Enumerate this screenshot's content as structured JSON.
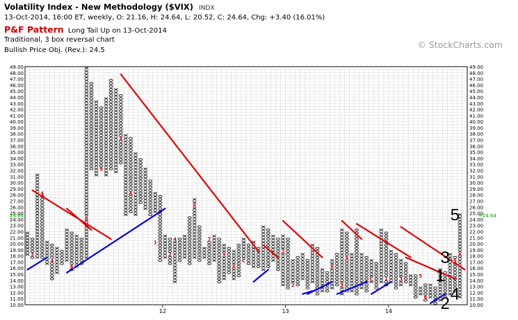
{
  "header": {
    "title": "Volatility Index - New Methodology ($VIX)",
    "exchange": "INDX",
    "ohlc": "13-Oct-2014, 16:00 ET, weekly, O: 21.16, H: 24.64, L: 20.52, C: 24.64, Chg: +3.40 (16.01%)",
    "pf_label": "P&F Pattern",
    "pattern_text": "Long Tail Up on 13-Oct-2014",
    "chart_type": "Traditional, 3 box reversal chart",
    "price_objective": "Bullish Price Obj. (Rev.): 24.5"
  },
  "watermark": "© StockCharts.com",
  "chart_data": {
    "type": "point-and-figure",
    "box_size": 0.5,
    "reversal": 3,
    "y_range": [
      10.0,
      49.0
    ],
    "y_tick_step": 0.5,
    "y_label_step": 1.0,
    "x_tick_labels": [
      {
        "label": "12",
        "column": 28
      },
      {
        "label": "13",
        "column": 53
      },
      {
        "label": "14",
        "column": 74
      }
    ],
    "last_price": "24.64",
    "last_price_label": "+24.64",
    "columns": [
      [
        "X",
        18.0,
        21.5
      ],
      [
        "O",
        17.5,
        20.5
      ],
      [
        "X",
        17.5,
        31.0
      ],
      [
        "O",
        17.5,
        28.0
      ],
      [
        "X",
        16.5,
        20.0
      ],
      [
        "O",
        14.0,
        19.5
      ],
      [
        "X",
        15.0,
        19.0
      ],
      [
        "O",
        16.5,
        18.5
      ],
      [
        "X",
        17.0,
        22.0
      ],
      [
        "O",
        15.5,
        21.5
      ],
      [
        "X",
        16.0,
        21.0
      ],
      [
        "O",
        16.5,
        20.5
      ],
      [
        "X",
        17.5,
        48.5
      ],
      [
        "O",
        32.0,
        46.0
      ],
      [
        "X",
        31.0,
        43.0
      ],
      [
        "O",
        32.0,
        42.0
      ],
      [
        "X",
        31.0,
        43.5
      ],
      [
        "O",
        32.0,
        46.5
      ],
      [
        "X",
        31.5,
        45.0
      ],
      [
        "O",
        33.0,
        44.0
      ],
      [
        "X",
        24.5,
        37.5
      ],
      [
        "O",
        25.0,
        37.0
      ],
      [
        "X",
        24.5,
        34.5
      ],
      [
        "O",
        26.5,
        33.5
      ],
      [
        "X",
        25.5,
        32.0
      ],
      [
        "O",
        24.5,
        30.0
      ],
      [
        "X",
        25.0,
        28.0
      ],
      [
        "O",
        17.0,
        27.5
      ],
      [
        "X",
        17.5,
        21.0
      ],
      [
        "O",
        16.5,
        20.5
      ],
      [
        "X",
        13.5,
        20.5
      ],
      [
        "O",
        17.0,
        20.5
      ],
      [
        "X",
        17.5,
        21.0
      ],
      [
        "O",
        16.5,
        24.0
      ],
      [
        "X",
        17.5,
        27.0
      ],
      [
        "O",
        17.0,
        22.5
      ],
      [
        "X",
        17.5,
        19.0
      ],
      [
        "O",
        16.5,
        20.5
      ],
      [
        "X",
        17.0,
        21.0
      ],
      [
        "O",
        13.5,
        20.5
      ],
      [
        "X",
        14.0,
        19.5
      ],
      [
        "O",
        15.0,
        19.0
      ],
      [
        "X",
        14.0,
        18.5
      ],
      [
        "O",
        14.5,
        19.5
      ],
      [
        "X",
        17.0,
        20.5
      ],
      [
        "O",
        16.5,
        19.5
      ],
      [
        "X",
        16.0,
        20.0
      ],
      [
        "O",
        16.0,
        19.0
      ],
      [
        "X",
        15.5,
        22.5
      ],
      [
        "O",
        16.0,
        22.0
      ],
      [
        "X",
        17.0,
        21.0
      ],
      [
        "O",
        15.5,
        20.5
      ],
      [
        "X",
        13.0,
        21.0
      ],
      [
        "O",
        12.5,
        20.5
      ],
      [
        "X",
        13.5,
        17.0
      ],
      [
        "O",
        13.0,
        17.5
      ],
      [
        "X",
        14.0,
        18.0
      ],
      [
        "O",
        12.5,
        17.0
      ],
      [
        "X",
        13.5,
        19.5
      ],
      [
        "O",
        11.5,
        19.0
      ],
      [
        "X",
        12.0,
        15.5
      ],
      [
        "O",
        12.0,
        15.0
      ],
      [
        "X",
        12.5,
        17.0
      ],
      [
        "O",
        13.0,
        18.0
      ],
      [
        "X",
        11.5,
        22.0
      ],
      [
        "O",
        12.0,
        21.5
      ],
      [
        "X",
        12.0,
        18.0
      ],
      [
        "O",
        11.5,
        22.0
      ],
      [
        "X",
        12.5,
        18.0
      ],
      [
        "O",
        12.0,
        17.5
      ],
      [
        "X",
        13.5,
        17.0
      ],
      [
        "O",
        12.5,
        16.5
      ],
      [
        "X",
        13.5,
        22.0
      ],
      [
        "O",
        13.0,
        21.5
      ],
      [
        "X",
        13.5,
        18.5
      ],
      [
        "O",
        12.5,
        18.0
      ],
      [
        "X",
        13.0,
        17.0
      ],
      [
        "O",
        13.5,
        16.5
      ],
      [
        "X",
        13.0,
        14.5
      ],
      [
        "O",
        11.0,
        14.5
      ],
      [
        "X",
        11.5,
        12.5
      ],
      [
        "O",
        10.5,
        13.0
      ],
      [
        "X",
        11.0,
        13.0
      ],
      [
        "O",
        10.0,
        12.5
      ],
      [
        "X",
        10.5,
        15.5
      ],
      [
        "O",
        11.0,
        15.0
      ],
      [
        "X",
        11.5,
        18.0
      ],
      [
        "O",
        12.0,
        17.5
      ],
      [
        "X",
        11.0,
        24.5
      ]
    ],
    "month_markers": [
      {
        "col": 1,
        "price": 18.0,
        "label": "3"
      },
      {
        "col": 3,
        "price": 28.0,
        "label": "4"
      },
      {
        "col": 5,
        "price": 17.0,
        "label": "4"
      },
      {
        "col": 9,
        "price": 16.0,
        "label": "6"
      },
      {
        "col": 12,
        "price": 24.0,
        "label": "8"
      },
      {
        "col": 15,
        "price": 32.0,
        "label": "9"
      },
      {
        "col": 19,
        "price": 37.0,
        "label": "X"
      },
      {
        "col": 21,
        "price": 28.0,
        "label": "A"
      },
      {
        "col": 26,
        "price": 20.0,
        "label": "1"
      },
      {
        "col": 29,
        "price": 18.0,
        "label": "2"
      },
      {
        "col": 30,
        "price": 20.5,
        "label": "4"
      },
      {
        "col": 34,
        "price": 26.0,
        "label": "6"
      },
      {
        "col": 37,
        "price": 20.5,
        "label": "7"
      },
      {
        "col": 40,
        "price": 18.0,
        "label": "9"
      },
      {
        "col": 42,
        "price": 16.0,
        "label": "A"
      },
      {
        "col": 44,
        "price": 17.0,
        "label": "C"
      },
      {
        "col": 52,
        "price": 18.5,
        "label": "2"
      },
      {
        "col": 54,
        "price": 13.0,
        "label": "2"
      },
      {
        "col": 62,
        "price": 16.0,
        "label": "8"
      },
      {
        "col": 64,
        "price": 13.0,
        "label": "9"
      },
      {
        "col": 65,
        "price": 17.5,
        "label": "9"
      },
      {
        "col": 70,
        "price": 14.0,
        "label": "C"
      },
      {
        "col": 73,
        "price": 14.0,
        "label": "1"
      },
      {
        "col": 76,
        "price": 14.0,
        "label": "3"
      },
      {
        "col": 80,
        "price": 14.5,
        "label": "5"
      },
      {
        "col": 81,
        "price": 11.0,
        "label": "6"
      },
      {
        "col": 87,
        "price": 17.0,
        "label": "9"
      },
      {
        "col": 88,
        "price": 18.0,
        "label": "A"
      }
    ],
    "red_trendlines": [
      [
        [
          1,
          28.5
        ],
        [
          17,
          20.5
        ]
      ],
      [
        [
          8,
          25.5
        ],
        [
          13,
          22.0
        ]
      ],
      [
        [
          19,
          47.5
        ],
        [
          47,
          18.5
        ]
      ],
      [
        [
          48,
          19.5
        ],
        [
          51,
          17.5
        ]
      ],
      [
        [
          52,
          23.5
        ],
        [
          60,
          17.5
        ]
      ],
      [
        [
          64,
          23.5
        ],
        [
          68,
          20.5
        ]
      ],
      [
        [
          67,
          23.0
        ],
        [
          78,
          17.5
        ]
      ],
      [
        [
          76,
          22.5
        ],
        [
          89,
          15.5
        ]
      ],
      [
        [
          77,
          17.5
        ],
        [
          87,
          14.0
        ]
      ]
    ],
    "blue_trendlines": [
      [
        [
          0,
          15.5
        ],
        [
          4,
          17.5
        ]
      ],
      [
        [
          8,
          15.0
        ],
        [
          28,
          25.5
        ]
      ],
      [
        [
          46,
          13.5
        ],
        [
          49,
          15.5
        ]
      ],
      [
        [
          56,
          11.5
        ],
        [
          58,
          12.0
        ]
      ],
      [
        [
          57,
          11.5
        ],
        [
          62,
          13.5
        ]
      ],
      [
        [
          63,
          11.5
        ],
        [
          69,
          13.5
        ]
      ],
      [
        [
          70,
          11.5
        ],
        [
          74,
          13.5
        ]
      ],
      [
        [
          82,
          10.0
        ],
        [
          85,
          11.5
        ]
      ]
    ],
    "wave_labels": [
      {
        "label": "1",
        "col": 84,
        "price": 14.5
      },
      {
        "label": "2",
        "col": 85,
        "price": 10.0
      },
      {
        "label": "3",
        "col": 85,
        "price": 17.5
      },
      {
        "label": "4",
        "col": 87,
        "price": 11.5
      },
      {
        "label": "5",
        "col": 87,
        "price": 24.5
      }
    ]
  }
}
